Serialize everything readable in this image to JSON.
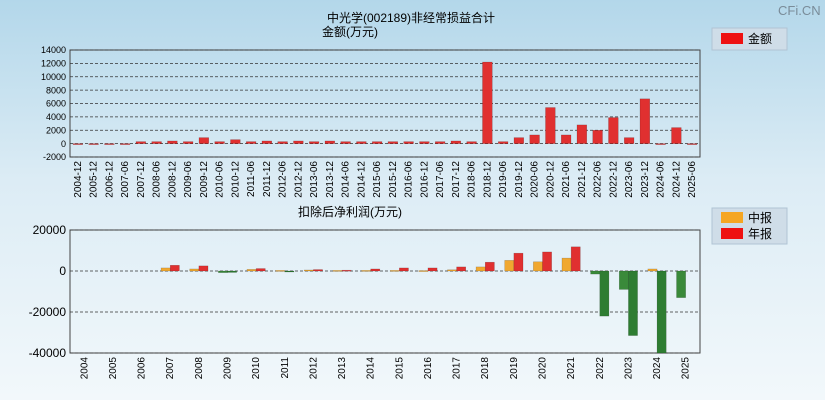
{
  "watermark": "CFi.CN",
  "chart_data": [
    {
      "type": "bar",
      "title": "中光学(002189)非经常损益合计",
      "subtitle": "金额(万元)",
      "legend": {
        "position": "top-right",
        "entries": [
          {
            "name": "金额",
            "color": "#ee1111"
          }
        ]
      },
      "categories": [
        "2004-12",
        "2005-12",
        "2006-12",
        "2007-06",
        "2007-12",
        "2008-06",
        "2008-12",
        "2009-06",
        "2009-12",
        "2010-06",
        "2010-12",
        "2011-06",
        "2011-12",
        "2012-06",
        "2012-12",
        "2013-06",
        "2013-12",
        "2014-06",
        "2014-12",
        "2015-06",
        "2015-12",
        "2016-06",
        "2016-12",
        "2017-06",
        "2017-12",
        "2018-06",
        "2018-12",
        "2019-06",
        "2019-12",
        "2020-06",
        "2020-12",
        "2021-06",
        "2021-12",
        "2022-06",
        "2022-12",
        "2023-06",
        "2023-12",
        "2024-06",
        "2024-12",
        "2025-06"
      ],
      "series": [
        {
          "name": "金额",
          "color": "#e03030",
          "values": [
            0,
            0,
            0,
            -100,
            300,
            300,
            400,
            300,
            900,
            300,
            600,
            300,
            400,
            300,
            400,
            300,
            400,
            300,
            300,
            300,
            300,
            300,
            300,
            300,
            400,
            300,
            12200,
            300,
            900,
            1300,
            5400,
            1300,
            2800,
            2000,
            3900,
            900,
            6700,
            0,
            2400,
            0
          ]
        }
      ],
      "ylim": [
        -2000,
        14000
      ],
      "yticks": [
        -2000,
        0,
        2000,
        4000,
        6000,
        8000,
        10000,
        12000,
        14000
      ],
      "grid": true
    },
    {
      "type": "bar",
      "title": "扣除后净利润(万元)",
      "legend": {
        "position": "top-right",
        "entries": [
          {
            "name": "中报",
            "color": "#f5a623"
          },
          {
            "name": "年报",
            "color": "#ee1111"
          }
        ]
      },
      "categories": [
        "2004",
        "2005",
        "2006",
        "2007",
        "2008",
        "2009",
        "2010",
        "2011",
        "2012",
        "2013",
        "2014",
        "2015",
        "2016",
        "2017",
        "2018",
        "2019",
        "2020",
        "2021",
        "2022",
        "2023",
        "2024",
        "2025"
      ],
      "series": [
        {
          "name": "中报",
          "color_pos": "#f0a830",
          "color_neg": "#3a8a3a",
          "values": [
            null,
            null,
            null,
            1500,
            1000,
            -800,
            800,
            300,
            500,
            300,
            300,
            300,
            200,
            600,
            2000,
            5200,
            4500,
            6300,
            -1500,
            -9000,
            1000,
            -13000
          ]
        },
        {
          "name": "年报",
          "color_pos": "#e03030",
          "color_neg": "#2e7d32",
          "values": [
            null,
            null,
            null,
            2800,
            2500,
            -700,
            1200,
            -400,
            700,
            400,
            1000,
            1500,
            1500,
            2000,
            4300,
            8700,
            9300,
            11800,
            -22000,
            -31500,
            -40000,
            null
          ]
        }
      ],
      "ylim": [
        -40000,
        20000
      ],
      "yticks": [
        -40000,
        -20000,
        0,
        20000
      ],
      "grid": true
    }
  ]
}
